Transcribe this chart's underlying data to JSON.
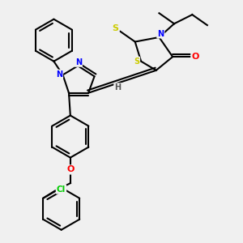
{
  "bg_color": "#f0f0f0",
  "bond_color": "#000000",
  "atom_colors": {
    "N": "#0000ff",
    "O": "#ff0000",
    "S": "#cccc00",
    "Cl": "#00cc00",
    "H": "#555555",
    "C": "#000000"
  },
  "title": "",
  "figsize": [
    3.0,
    3.0
  ],
  "dpi": 100
}
